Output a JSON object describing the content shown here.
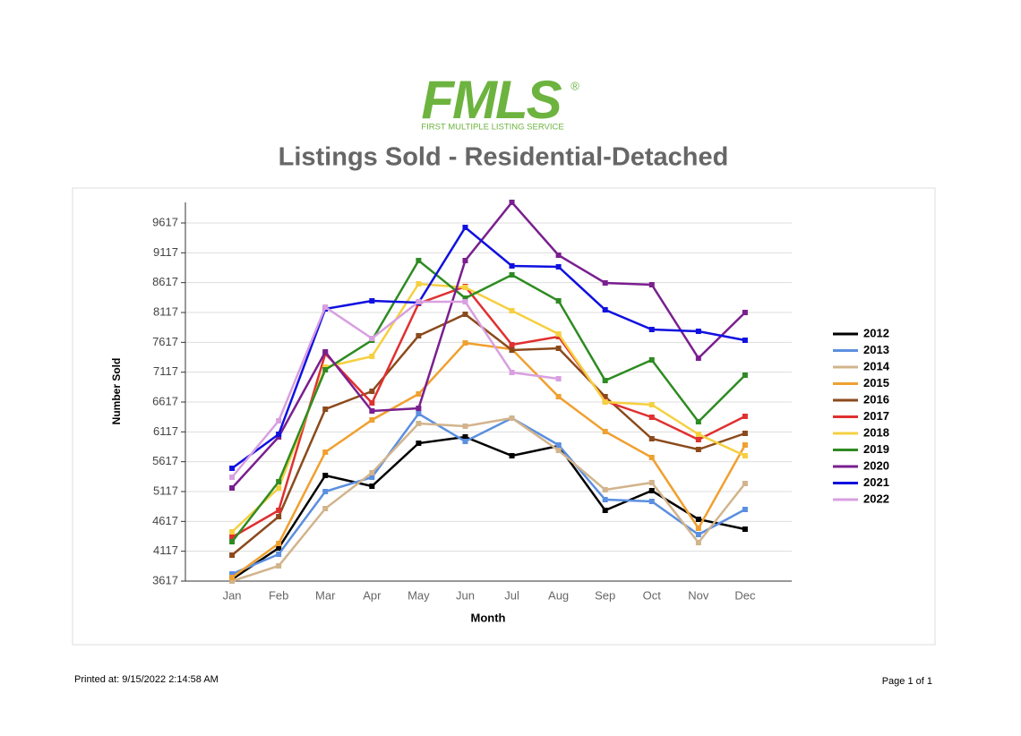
{
  "logo": {
    "name": "FMLS",
    "mark": "®",
    "tagline": "FIRST MULTIPLE LISTING SERVICE"
  },
  "chart_data": {
    "type": "line",
    "title": "Listings Sold - Residential-Detached",
    "x_label": "Month",
    "y_label": "Number Sold",
    "categories": [
      "Jan",
      "Feb",
      "Mar",
      "Apr",
      "May",
      "Jun",
      "Jul",
      "Aug",
      "Sep",
      "Oct",
      "Nov",
      "Dec"
    ],
    "ylim": [
      3617,
      9962
    ],
    "yticks": [
      3617,
      4117,
      4617,
      5117,
      5617,
      6117,
      6617,
      7117,
      7617,
      8117,
      8617,
      9117,
      9617
    ],
    "grid": true,
    "legend": "right",
    "series": [
      {
        "name": "2012",
        "color": "#000000",
        "values": [
          3647,
          4172,
          5387,
          5207,
          5927,
          6032,
          5717,
          5882,
          4802,
          5132,
          4652,
          4487
        ]
      },
      {
        "name": "2013",
        "color": "#5b8fe0",
        "values": [
          3737,
          4067,
          5117,
          5357,
          6422,
          5957,
          6347,
          5897,
          4982,
          4952,
          4397,
          4817
        ]
      },
      {
        "name": "2014",
        "color": "#d2b48c",
        "values": [
          3617,
          3872,
          4832,
          5432,
          6257,
          6212,
          6347,
          5807,
          5147,
          5267,
          4262,
          5252
        ]
      },
      {
        "name": "2015",
        "color": "#f0a030",
        "values": [
          3677,
          4247,
          5777,
          6317,
          6752,
          7607,
          7502,
          6707,
          6122,
          5687,
          4502,
          5897
        ]
      },
      {
        "name": "2016",
        "color": "#8b4a1c",
        "values": [
          4052,
          4697,
          6497,
          6797,
          7727,
          8087,
          7487,
          7517,
          6707,
          6002,
          5822,
          6092
        ]
      },
      {
        "name": "2017",
        "color": "#e03030",
        "values": [
          4352,
          4802,
          7427,
          6602,
          8267,
          8552,
          7577,
          7712,
          6632,
          6362,
          5987,
          6377
        ]
      },
      {
        "name": "2018",
        "color": "#f5d040",
        "values": [
          4442,
          5177,
          7202,
          7382,
          8597,
          8537,
          8147,
          7757,
          6617,
          6572,
          6077,
          5717
        ]
      },
      {
        "name": "2019",
        "color": "#2e8b22",
        "values": [
          4277,
          5282,
          7157,
          7652,
          8987,
          8357,
          8747,
          8312,
          6977,
          7322,
          6287,
          7067
        ]
      },
      {
        "name": "2020",
        "color": "#7a1f8f",
        "values": [
          5177,
          6032,
          7457,
          6467,
          6512,
          8987,
          9962,
          9077,
          8612,
          8582,
          7352,
          8117
        ]
      },
      {
        "name": "2021",
        "color": "#1010e0",
        "values": [
          5507,
          6077,
          8177,
          8312,
          8282,
          9542,
          8897,
          8882,
          8162,
          7832,
          7802,
          7652
        ]
      },
      {
        "name": "2022",
        "color": "#d8a0e0",
        "values": [
          5357,
          6302,
          8207,
          7682,
          8297,
          8297,
          7112,
          7007,
          null,
          null,
          null,
          null
        ]
      }
    ]
  },
  "footer": {
    "printed": "Printed at:  9/15/2022 2:14:58 AM",
    "page": "Page 1 of 1"
  }
}
